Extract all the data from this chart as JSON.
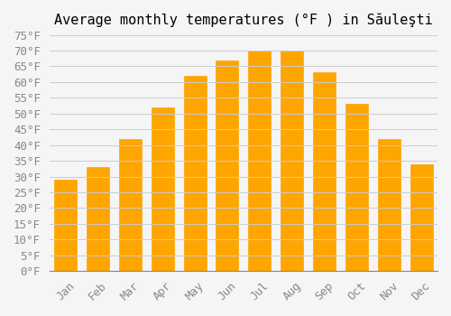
{
  "title": "Average monthly temperatures (°F ) in Săuleşti",
  "months": [
    "Jan",
    "Feb",
    "Mar",
    "Apr",
    "May",
    "Jun",
    "Jul",
    "Aug",
    "Sep",
    "Oct",
    "Nov",
    "Dec"
  ],
  "values": [
    29,
    33,
    42,
    52,
    62,
    67,
    70,
    70,
    63,
    53,
    42,
    34
  ],
  "bar_color": "#FFA500",
  "bar_edge_color": "#FFB833",
  "ylim": [
    0,
    75
  ],
  "yticks": [
    0,
    5,
    10,
    15,
    20,
    25,
    30,
    35,
    40,
    45,
    50,
    55,
    60,
    65,
    70,
    75
  ],
  "background_color": "#f5f5f5",
  "grid_color": "#cccccc",
  "title_fontsize": 11,
  "tick_fontsize": 9
}
